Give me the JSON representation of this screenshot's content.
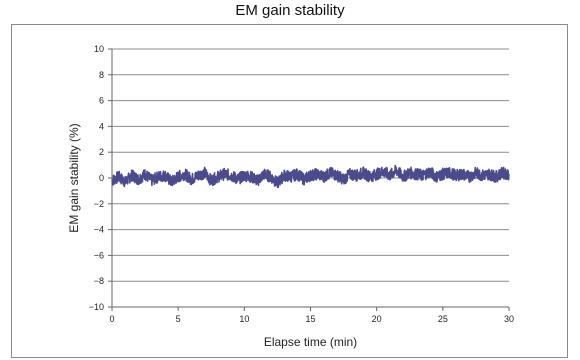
{
  "chart_data": {
    "type": "line",
    "title": "EM gain stability",
    "xlabel": "Elapse time (min)",
    "ylabel": "EM gain stability (%)",
    "xlim": [
      0,
      30
    ],
    "ylim": [
      -10,
      10
    ],
    "xticks": [
      0,
      5,
      10,
      15,
      20,
      25,
      30
    ],
    "yticks": [
      -10,
      -8,
      -6,
      -4,
      -2,
      0,
      2,
      4,
      6,
      8,
      10
    ],
    "grid": "horizontal",
    "legend": "none",
    "series": [
      {
        "color": "#4b4a8c",
        "x": [
          0,
          0.5,
          1,
          1.5,
          2,
          2.5,
          3,
          3.5,
          4,
          4.5,
          5,
          5.5,
          6,
          6.5,
          7,
          7.5,
          8,
          8.5,
          9,
          9.5,
          10,
          10.5,
          11,
          11.5,
          12,
          12.5,
          13,
          13.5,
          14,
          14.5,
          15,
          15.5,
          16,
          16.5,
          17,
          17.5,
          18,
          18.5,
          19,
          19.5,
          20,
          20.5,
          21,
          21.5,
          22,
          22.5,
          23,
          23.5,
          24,
          24.5,
          25,
          25.5,
          26,
          26.5,
          27,
          27.5,
          28,
          28.5,
          29,
          29.5,
          30
        ],
        "y": [
          -0.2,
          0.1,
          -0.3,
          0.2,
          -0.1,
          0.3,
          -0.2,
          0.1,
          0.2,
          -0.3,
          0.1,
          0.3,
          -0.1,
          0.2,
          0.4,
          -0.2,
          0.1,
          0.3,
          0.2,
          -0.1,
          0.2,
          0.1,
          -0.2,
          0.3,
          0.1,
          -0.4,
          0.2,
          0.1,
          0.3,
          -0.1,
          0.2,
          0.3,
          0.1,
          0.4,
          0.2,
          -0.1,
          0.3,
          0.2,
          0.4,
          0.1,
          0.3,
          0.5,
          0.2,
          0.6,
          0.1,
          0.4,
          0.3,
          0.2,
          0.5,
          0.1,
          0.3,
          0.4,
          0.2,
          0.3,
          0.1,
          0.4,
          0.2,
          0.3,
          0.1,
          0.4,
          0.3
        ]
      }
    ]
  }
}
